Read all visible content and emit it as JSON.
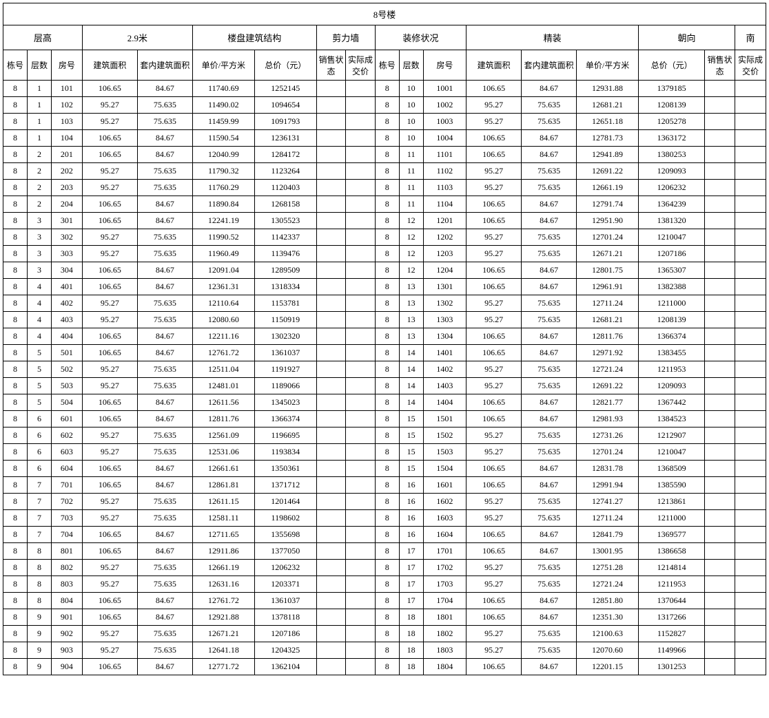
{
  "title": "8号楼",
  "headers_top": {
    "h1": "层高",
    "h2": "2.9米",
    "h3": "楼盘建筑结构",
    "h4": "剪力墙",
    "h5": "装修状况",
    "h6": "精装",
    "h7": "朝向",
    "h8": "南"
  },
  "subheaders": {
    "c1": "栋号",
    "c2": "层数",
    "c3": "房号",
    "c4": "建筑面积",
    "c5": "套内建筑面积",
    "c6": "单价/平方米",
    "c7": "总价（元）",
    "c8": "销售状态",
    "c9": "实际成交价"
  },
  "colwidths_pct": {
    "c1": 2.8,
    "c2": 2.8,
    "c3": 3.6,
    "c4": 6.4,
    "c5": 6.4,
    "c6": 7.2,
    "c7": 7.2,
    "c8": 3.4,
    "c9": 3.4,
    "c10": 2.8,
    "c11": 2.8,
    "c12": 5.0,
    "c13": 6.4,
    "c14": 6.4,
    "c15": 7.2,
    "c16": 7.7,
    "c17": 3.5,
    "c18": 3.6
  },
  "rows": [
    {
      "l": [
        "8",
        "1",
        "101",
        "106.65",
        "84.67",
        "11740.69",
        "1252145",
        "",
        ""
      ],
      "r": [
        "8",
        "10",
        "1001",
        "106.65",
        "84.67",
        "12931.88",
        "1379185",
        "",
        ""
      ]
    },
    {
      "l": [
        "8",
        "1",
        "102",
        "95.27",
        "75.635",
        "11490.02",
        "1094654",
        "",
        ""
      ],
      "r": [
        "8",
        "10",
        "1002",
        "95.27",
        "75.635",
        "12681.21",
        "1208139",
        "",
        ""
      ]
    },
    {
      "l": [
        "8",
        "1",
        "103",
        "95.27",
        "75.635",
        "11459.99",
        "1091793",
        "",
        ""
      ],
      "r": [
        "8",
        "10",
        "1003",
        "95.27",
        "75.635",
        "12651.18",
        "1205278",
        "",
        ""
      ]
    },
    {
      "l": [
        "8",
        "1",
        "104",
        "106.65",
        "84.67",
        "11590.54",
        "1236131",
        "",
        ""
      ],
      "r": [
        "8",
        "10",
        "1004",
        "106.65",
        "84.67",
        "12781.73",
        "1363172",
        "",
        ""
      ]
    },
    {
      "l": [
        "8",
        "2",
        "201",
        "106.65",
        "84.67",
        "12040.99",
        "1284172",
        "",
        ""
      ],
      "r": [
        "8",
        "11",
        "1101",
        "106.65",
        "84.67",
        "12941.89",
        "1380253",
        "",
        ""
      ]
    },
    {
      "l": [
        "8",
        "2",
        "202",
        "95.27",
        "75.635",
        "11790.32",
        "1123264",
        "",
        ""
      ],
      "r": [
        "8",
        "11",
        "1102",
        "95.27",
        "75.635",
        "12691.22",
        "1209093",
        "",
        ""
      ]
    },
    {
      "l": [
        "8",
        "2",
        "203",
        "95.27",
        "75.635",
        "11760.29",
        "1120403",
        "",
        ""
      ],
      "r": [
        "8",
        "11",
        "1103",
        "95.27",
        "75.635",
        "12661.19",
        "1206232",
        "",
        ""
      ]
    },
    {
      "l": [
        "8",
        "2",
        "204",
        "106.65",
        "84.67",
        "11890.84",
        "1268158",
        "",
        ""
      ],
      "r": [
        "8",
        "11",
        "1104",
        "106.65",
        "84.67",
        "12791.74",
        "1364239",
        "",
        ""
      ]
    },
    {
      "l": [
        "8",
        "3",
        "301",
        "106.65",
        "84.67",
        "12241.19",
        "1305523",
        "",
        ""
      ],
      "r": [
        "8",
        "12",
        "1201",
        "106.65",
        "84.67",
        "12951.90",
        "1381320",
        "",
        ""
      ]
    },
    {
      "l": [
        "8",
        "3",
        "302",
        "95.27",
        "75.635",
        "11990.52",
        "1142337",
        "",
        ""
      ],
      "r": [
        "8",
        "12",
        "1202",
        "95.27",
        "75.635",
        "12701.24",
        "1210047",
        "",
        ""
      ]
    },
    {
      "l": [
        "8",
        "3",
        "303",
        "95.27",
        "75.635",
        "11960.49",
        "1139476",
        "",
        ""
      ],
      "r": [
        "8",
        "12",
        "1203",
        "95.27",
        "75.635",
        "12671.21",
        "1207186",
        "",
        ""
      ]
    },
    {
      "l": [
        "8",
        "3",
        "304",
        "106.65",
        "84.67",
        "12091.04",
        "1289509",
        "",
        ""
      ],
      "r": [
        "8",
        "12",
        "1204",
        "106.65",
        "84.67",
        "12801.75",
        "1365307",
        "",
        ""
      ]
    },
    {
      "l": [
        "8",
        "4",
        "401",
        "106.65",
        "84.67",
        "12361.31",
        "1318334",
        "",
        ""
      ],
      "r": [
        "8",
        "13",
        "1301",
        "106.65",
        "84.67",
        "12961.91",
        "1382388",
        "",
        ""
      ]
    },
    {
      "l": [
        "8",
        "4",
        "402",
        "95.27",
        "75.635",
        "12110.64",
        "1153781",
        "",
        ""
      ],
      "r": [
        "8",
        "13",
        "1302",
        "95.27",
        "75.635",
        "12711.24",
        "1211000",
        "",
        ""
      ]
    },
    {
      "l": [
        "8",
        "4",
        "403",
        "95.27",
        "75.635",
        "12080.60",
        "1150919",
        "",
        ""
      ],
      "r": [
        "8",
        "13",
        "1303",
        "95.27",
        "75.635",
        "12681.21",
        "1208139",
        "",
        ""
      ]
    },
    {
      "l": [
        "8",
        "4",
        "404",
        "106.65",
        "84.67",
        "12211.16",
        "1302320",
        "",
        ""
      ],
      "r": [
        "8",
        "13",
        "1304",
        "106.65",
        "84.67",
        "12811.76",
        "1366374",
        "",
        ""
      ]
    },
    {
      "l": [
        "8",
        "5",
        "501",
        "106.65",
        "84.67",
        "12761.72",
        "1361037",
        "",
        ""
      ],
      "r": [
        "8",
        "14",
        "1401",
        "106.65",
        "84.67",
        "12971.92",
        "1383455",
        "",
        ""
      ]
    },
    {
      "l": [
        "8",
        "5",
        "502",
        "95.27",
        "75.635",
        "12511.04",
        "1191927",
        "",
        ""
      ],
      "r": [
        "8",
        "14",
        "1402",
        "95.27",
        "75.635",
        "12721.24",
        "1211953",
        "",
        ""
      ]
    },
    {
      "l": [
        "8",
        "5",
        "503",
        "95.27",
        "75.635",
        "12481.01",
        "1189066",
        "",
        ""
      ],
      "r": [
        "8",
        "14",
        "1403",
        "95.27",
        "75.635",
        "12691.22",
        "1209093",
        "",
        ""
      ]
    },
    {
      "l": [
        "8",
        "5",
        "504",
        "106.65",
        "84.67",
        "12611.56",
        "1345023",
        "",
        ""
      ],
      "r": [
        "8",
        "14",
        "1404",
        "106.65",
        "84.67",
        "12821.77",
        "1367442",
        "",
        ""
      ]
    },
    {
      "l": [
        "8",
        "6",
        "601",
        "106.65",
        "84.67",
        "12811.76",
        "1366374",
        "",
        ""
      ],
      "r": [
        "8",
        "15",
        "1501",
        "106.65",
        "84.67",
        "12981.93",
        "1384523",
        "",
        ""
      ]
    },
    {
      "l": [
        "8",
        "6",
        "602",
        "95.27",
        "75.635",
        "12561.09",
        "1196695",
        "",
        ""
      ],
      "r": [
        "8",
        "15",
        "1502",
        "95.27",
        "75.635",
        "12731.26",
        "1212907",
        "",
        ""
      ]
    },
    {
      "l": [
        "8",
        "6",
        "603",
        "95.27",
        "75.635",
        "12531.06",
        "1193834",
        "",
        ""
      ],
      "r": [
        "8",
        "15",
        "1503",
        "95.27",
        "75.635",
        "12701.24",
        "1210047",
        "",
        ""
      ]
    },
    {
      "l": [
        "8",
        "6",
        "604",
        "106.65",
        "84.67",
        "12661.61",
        "1350361",
        "",
        ""
      ],
      "r": [
        "8",
        "15",
        "1504",
        "106.65",
        "84.67",
        "12831.78",
        "1368509",
        "",
        ""
      ]
    },
    {
      "l": [
        "8",
        "7",
        "701",
        "106.65",
        "84.67",
        "12861.81",
        "1371712",
        "",
        ""
      ],
      "r": [
        "8",
        "16",
        "1601",
        "106.65",
        "84.67",
        "12991.94",
        "1385590",
        "",
        ""
      ]
    },
    {
      "l": [
        "8",
        "7",
        "702",
        "95.27",
        "75.635",
        "12611.15",
        "1201464",
        "",
        ""
      ],
      "r": [
        "8",
        "16",
        "1602",
        "95.27",
        "75.635",
        "12741.27",
        "1213861",
        "",
        ""
      ]
    },
    {
      "l": [
        "8",
        "7",
        "703",
        "95.27",
        "75.635",
        "12581.11",
        "1198602",
        "",
        ""
      ],
      "r": [
        "8",
        "16",
        "1603",
        "95.27",
        "75.635",
        "12711.24",
        "1211000",
        "",
        ""
      ]
    },
    {
      "l": [
        "8",
        "7",
        "704",
        "106.65",
        "84.67",
        "12711.65",
        "1355698",
        "",
        ""
      ],
      "r": [
        "8",
        "16",
        "1604",
        "106.65",
        "84.67",
        "12841.79",
        "1369577",
        "",
        ""
      ]
    },
    {
      "l": [
        "8",
        "8",
        "801",
        "106.65",
        "84.67",
        "12911.86",
        "1377050",
        "",
        ""
      ],
      "r": [
        "8",
        "17",
        "1701",
        "106.65",
        "84.67",
        "13001.95",
        "1386658",
        "",
        ""
      ]
    },
    {
      "l": [
        "8",
        "8",
        "802",
        "95.27",
        "75.635",
        "12661.19",
        "1206232",
        "",
        ""
      ],
      "r": [
        "8",
        "17",
        "1702",
        "95.27",
        "75.635",
        "12751.28",
        "1214814",
        "",
        ""
      ]
    },
    {
      "l": [
        "8",
        "8",
        "803",
        "95.27",
        "75.635",
        "12631.16",
        "1203371",
        "",
        ""
      ],
      "r": [
        "8",
        "17",
        "1703",
        "95.27",
        "75.635",
        "12721.24",
        "1211953",
        "",
        ""
      ]
    },
    {
      "l": [
        "8",
        "8",
        "804",
        "106.65",
        "84.67",
        "12761.72",
        "1361037",
        "",
        ""
      ],
      "r": [
        "8",
        "17",
        "1704",
        "106.65",
        "84.67",
        "12851.80",
        "1370644",
        "",
        ""
      ]
    },
    {
      "l": [
        "8",
        "9",
        "901",
        "106.65",
        "84.67",
        "12921.88",
        "1378118",
        "",
        ""
      ],
      "r": [
        "8",
        "18",
        "1801",
        "106.65",
        "84.67",
        "12351.30",
        "1317266",
        "",
        ""
      ]
    },
    {
      "l": [
        "8",
        "9",
        "902",
        "95.27",
        "75.635",
        "12671.21",
        "1207186",
        "",
        ""
      ],
      "r": [
        "8",
        "18",
        "1802",
        "95.27",
        "75.635",
        "12100.63",
        "1152827",
        "",
        ""
      ]
    },
    {
      "l": [
        "8",
        "9",
        "903",
        "95.27",
        "75.635",
        "12641.18",
        "1204325",
        "",
        ""
      ],
      "r": [
        "8",
        "18",
        "1803",
        "95.27",
        "75.635",
        "12070.60",
        "1149966",
        "",
        ""
      ]
    },
    {
      "l": [
        "8",
        "9",
        "904",
        "106.65",
        "84.67",
        "12771.72",
        "1362104",
        "",
        ""
      ],
      "r": [
        "8",
        "18",
        "1804",
        "106.65",
        "84.67",
        "12201.15",
        "1301253",
        "",
        ""
      ]
    }
  ]
}
